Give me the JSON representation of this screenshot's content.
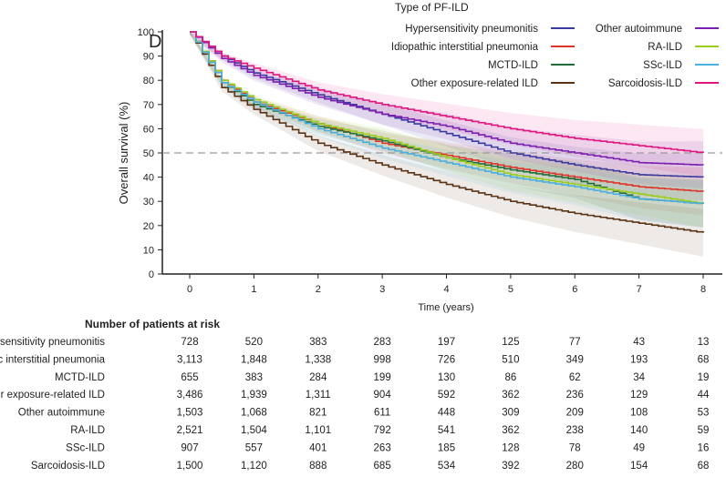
{
  "panel_label": "D",
  "chart_data": {
    "type": "line",
    "title": "",
    "xlabel": "Time (years)",
    "ylabel": "Overall survival (%)",
    "xlim": [
      0,
      8
    ],
    "ylim": [
      0,
      100
    ],
    "xticks": [
      0,
      1,
      2,
      3,
      4,
      5,
      6,
      7,
      8
    ],
    "yticks": [
      0,
      10,
      20,
      30,
      40,
      50,
      60,
      70,
      80,
      90,
      100
    ],
    "reference_line": 50,
    "legend_title": "Type of PF-ILD",
    "legend_placement": "top-right",
    "x": [
      0,
      0.5,
      1,
      2,
      3,
      4,
      5,
      6,
      7,
      8
    ],
    "series": [
      {
        "name": "Hypersensitivity pneumonitis",
        "color": "#3b3b9e",
        "values": [
          100,
          90,
          83,
          74,
          66,
          58,
          50,
          45,
          41,
          40
        ]
      },
      {
        "name": "Idiopathic interstitial pneumonia",
        "color": "#e0342a",
        "values": [
          100,
          80,
          71,
          62,
          54,
          49,
          44,
          40,
          36,
          34
        ]
      },
      {
        "name": "MCTD-ILD",
        "color": "#1f6e3a",
        "values": [
          100,
          79,
          70,
          61,
          55,
          48,
          43,
          39,
          31,
          29
        ]
      },
      {
        "name": "Other exposure-related ILD",
        "color": "#5a3214",
        "values": [
          100,
          77,
          68,
          54,
          45,
          37,
          30,
          25,
          21,
          17
        ]
      },
      {
        "name": "Other autoimmune",
        "color": "#7a1fb0",
        "values": [
          100,
          89,
          82,
          73,
          66,
          61,
          54,
          50,
          46,
          45
        ]
      },
      {
        "name": "RA-ILD",
        "color": "#9acd1e",
        "values": [
          100,
          80,
          72,
          62,
          56,
          48,
          41,
          37,
          33,
          29
        ]
      },
      {
        "name": "SSc-ILD",
        "color": "#4aaee0",
        "values": [
          100,
          79,
          71,
          60,
          52,
          46,
          40,
          36,
          31,
          29
        ]
      },
      {
        "name": "Sarcoidosis-ILD",
        "color": "#e0157f",
        "values": [
          100,
          90,
          85,
          76,
          70,
          65,
          60,
          56,
          53,
          50
        ]
      }
    ],
    "risk_table": {
      "title": "Number of patients at risk",
      "rows": [
        {
          "label": "Hypersensitivity pneumonitis",
          "values": [
            "728",
            "520",
            "383",
            "283",
            "197",
            "125",
            "77",
            "43",
            "13"
          ]
        },
        {
          "label": "Idiopathic interstitial pneumonia",
          "values": [
            "3,113",
            "1,848",
            "1,338",
            "998",
            "726",
            "510",
            "349",
            "193",
            "68"
          ]
        },
        {
          "label": "MCTD-ILD",
          "values": [
            "655",
            "383",
            "284",
            "199",
            "130",
            "86",
            "62",
            "34",
            "19"
          ]
        },
        {
          "label": "Other exposure-related ILD",
          "values": [
            "3,486",
            "1,939",
            "1,311",
            "904",
            "592",
            "362",
            "236",
            "129",
            "44"
          ]
        },
        {
          "label": "Other autoimmune",
          "values": [
            "1,503",
            "1,068",
            "821",
            "611",
            "448",
            "309",
            "209",
            "108",
            "53"
          ]
        },
        {
          "label": "RA-ILD",
          "values": [
            "2,521",
            "1,504",
            "1,101",
            "792",
            "541",
            "362",
            "238",
            "140",
            "59"
          ]
        },
        {
          "label": "SSc-ILD",
          "values": [
            "907",
            "557",
            "401",
            "263",
            "185",
            "128",
            "78",
            "49",
            "16"
          ]
        },
        {
          "label": "Sarcoidosis-ILD",
          "values": [
            "1,500",
            "1,120",
            "888",
            "685",
            "534",
            "392",
            "280",
            "154",
            "68"
          ]
        }
      ]
    }
  }
}
